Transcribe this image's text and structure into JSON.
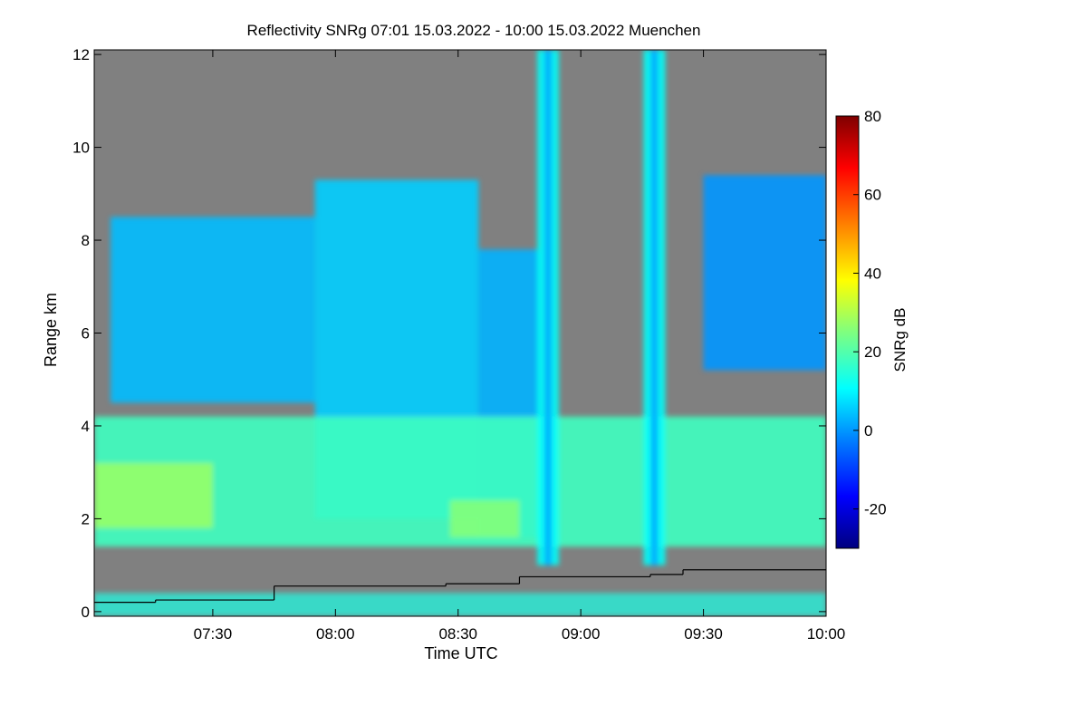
{
  "chart_data": {
    "type": "heatmap",
    "title": "Reflectivity SNRg   07:01 15.03.2022 - 10:00 15.03.2022 Muenchen",
    "xlabel": "Time UTC",
    "ylabel": "Range km",
    "x_ticks": [
      "07:30",
      "08:00",
      "08:30",
      "09:00",
      "09:30",
      "10:00"
    ],
    "x_tick_minutes": [
      30,
      60,
      90,
      120,
      150,
      180
    ],
    "xlim_minutes": [
      1,
      180
    ],
    "y_ticks": [
      "0",
      "2",
      "4",
      "6",
      "8",
      "10",
      "12"
    ],
    "y_tick_values": [
      0,
      2,
      4,
      6,
      8,
      10,
      12
    ],
    "ylim": [
      -0.1,
      12.1
    ],
    "colorbar": {
      "label": "SNRg dB",
      "ticks": [
        "-20",
        "0",
        "20",
        "40",
        "60",
        "80"
      ],
      "tick_values": [
        -20,
        0,
        20,
        40,
        60,
        80
      ],
      "range": [
        -30,
        80
      ]
    },
    "no_data_color": "#808080",
    "colormap": [
      "#00007f",
      "#0000ff",
      "#007fff",
      "#00ffff",
      "#7fff7f",
      "#ffff00",
      "#ff7f00",
      "#ff0000",
      "#7f0000"
    ],
    "cloud_layers": [
      {
        "x0": 5,
        "x1": 55,
        "base_km": 4.5,
        "top_km": 8.5,
        "snr": 4
      },
      {
        "x0": 55,
        "x1": 95,
        "base_km": 2.0,
        "top_km": 9.3,
        "snr": 6
      },
      {
        "x0": 95,
        "x1": 110,
        "base_km": 1.6,
        "top_km": 7.8,
        "snr": 3
      },
      {
        "x0": 150,
        "x1": 180,
        "base_km": 5.2,
        "top_km": 9.4,
        "snr": 0
      },
      {
        "x0": 1,
        "x1": 180,
        "base_km": 1.4,
        "top_km": 4.2,
        "snr": 18
      }
    ],
    "vertical_plumes_minutes": [
      112,
      138
    ],
    "boundary_line_km": [
      {
        "x0": 1,
        "x1": 16,
        "y": 0.2
      },
      {
        "x0": 16,
        "x1": 45,
        "y": 0.25
      },
      {
        "x0": 45,
        "x1": 87,
        "y": 0.55
      },
      {
        "x0": 87,
        "x1": 105,
        "y": 0.6
      },
      {
        "x0": 105,
        "x1": 137,
        "y": 0.75
      },
      {
        "x0": 137,
        "x1": 145,
        "y": 0.8
      },
      {
        "x0": 145,
        "x1": 180,
        "y": 0.9
      }
    ]
  }
}
